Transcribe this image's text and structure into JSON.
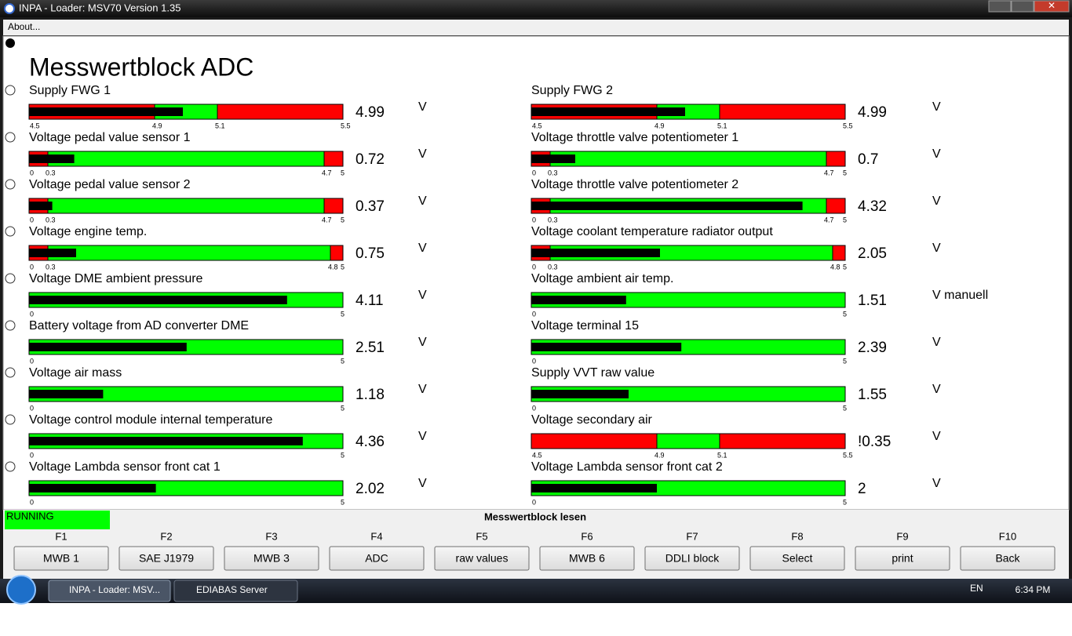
{
  "window": {
    "title": "INPA - Loader:  MSV70 Version 1.35",
    "menu": "About..."
  },
  "page": {
    "title": "Messwertblock ADC"
  },
  "gauges": [
    {
      "label": "Supply FWG 1",
      "value": 4.99,
      "unit": "V",
      "ticks": [
        4.5,
        4.9,
        5.1,
        5.5
      ],
      "zone_colors": [
        "#ff0000",
        "#00ff00",
        "#ff0000"
      ]
    },
    {
      "label": "Voltage pedal value sensor 1",
      "value": 0.72,
      "unit": "V",
      "ticks": [
        0,
        0.3,
        4.7,
        5
      ],
      "zone_colors": [
        "#ff0000",
        "#00ff00",
        "#ff0000"
      ]
    },
    {
      "label": "Voltage pedal value sensor 2",
      "value": 0.37,
      "unit": "V",
      "ticks": [
        0,
        0.3,
        4.7,
        5
      ],
      "zone_colors": [
        "#ff0000",
        "#00ff00",
        "#ff0000"
      ]
    },
    {
      "label": "Voltage engine temp.",
      "value": 0.75,
      "unit": "V",
      "ticks": [
        0,
        0.3,
        4.8,
        5
      ],
      "zone_colors": [
        "#ff0000",
        "#00ff00",
        "#ff0000"
      ]
    },
    {
      "label": "Voltage DME ambient pressure",
      "value": 4.11,
      "unit": "V",
      "ticks": [
        0,
        5
      ],
      "zone_colors": [
        "#00ff00"
      ]
    },
    {
      "label": "Battery voltage from AD converter DME",
      "value": 2.51,
      "unit": "V",
      "ticks": [
        0,
        5
      ],
      "zone_colors": [
        "#00ff00"
      ]
    },
    {
      "label": "Voltage air mass",
      "value": 1.18,
      "unit": "V",
      "ticks": [
        0,
        5
      ],
      "zone_colors": [
        "#00ff00"
      ]
    },
    {
      "label": "Voltage control module internal temperature",
      "value": 4.36,
      "unit": "V",
      "ticks": [
        0,
        5
      ],
      "zone_colors": [
        "#00ff00"
      ]
    },
    {
      "label": "Voltage Lambda sensor front cat 1",
      "value": 2.02,
      "unit": "V",
      "ticks": [
        0,
        5
      ],
      "zone_colors": [
        "#00ff00"
      ]
    },
    {
      "label": "Supply FWG 2",
      "value": 4.99,
      "unit": "V",
      "ticks": [
        4.5,
        4.9,
        5.1,
        5.5
      ],
      "zone_colors": [
        "#ff0000",
        "#00ff00",
        "#ff0000"
      ]
    },
    {
      "label": "Voltage throttle valve potentiometer 1",
      "value": 0.7,
      "unit": "V",
      "ticks": [
        0,
        0.3,
        4.7,
        5
      ],
      "zone_colors": [
        "#ff0000",
        "#00ff00",
        "#ff0000"
      ]
    },
    {
      "label": "Voltage throttle valve potentiometer 2",
      "value": 4.32,
      "unit": "V",
      "ticks": [
        0,
        0.3,
        4.7,
        5
      ],
      "zone_colors": [
        "#ff0000",
        "#00ff00",
        "#ff0000"
      ]
    },
    {
      "label": "Voltage coolant temperature radiator output",
      "value": 2.05,
      "unit": "V",
      "ticks": [
        0,
        0.3,
        4.8,
        5
      ],
      "zone_colors": [
        "#ff0000",
        "#00ff00",
        "#ff0000"
      ]
    },
    {
      "label": "Voltage ambient air temp.",
      "value": 1.51,
      "unit": "V manuell",
      "ticks": [
        0,
        5
      ],
      "zone_colors": [
        "#00ff00"
      ]
    },
    {
      "label": "Voltage terminal 15",
      "value": 2.39,
      "unit": "V",
      "ticks": [
        0,
        5
      ],
      "zone_colors": [
        "#00ff00"
      ]
    },
    {
      "label": "Supply VVT raw value",
      "value": 1.55,
      "unit": "V",
      "ticks": [
        0,
        5
      ],
      "zone_colors": [
        "#00ff00"
      ]
    },
    {
      "label": "Voltage secondary air",
      "value": 0.35,
      "value_label": "!0.35",
      "unit": "V",
      "ticks": [
        4.5,
        4.9,
        5.1,
        5.5
      ],
      "zone_colors": [
        "#ff0000",
        "#00ff00",
        "#ff0000"
      ]
    },
    {
      "label": "Voltage Lambda sensor front cat 2",
      "value": 2.0,
      "unit": "V",
      "ticks": [
        0,
        5
      ],
      "zone_colors": [
        "#00ff00"
      ]
    }
  ],
  "status": {
    "state": "RUNNING",
    "message": "Messwertblock lesen"
  },
  "function_keys": [
    {
      "key": "F1",
      "label": "MWB 1"
    },
    {
      "key": "F2",
      "label": "SAE J1979"
    },
    {
      "key": "F3",
      "label": "MWB 3"
    },
    {
      "key": "F4",
      "label": "ADC"
    },
    {
      "key": "F5",
      "label": "raw values"
    },
    {
      "key": "F6",
      "label": "MWB 6"
    },
    {
      "key": "F7",
      "label": "DDLI block"
    },
    {
      "key": "F8",
      "label": "Select"
    },
    {
      "key": "F9",
      "label": "print"
    },
    {
      "key": "F10",
      "label": "Back"
    }
  ],
  "taskbar": {
    "items": [
      "INPA - Loader:  MSV...",
      "EDIABAS Server"
    ],
    "language": "EN",
    "time": "6:34 PM"
  }
}
